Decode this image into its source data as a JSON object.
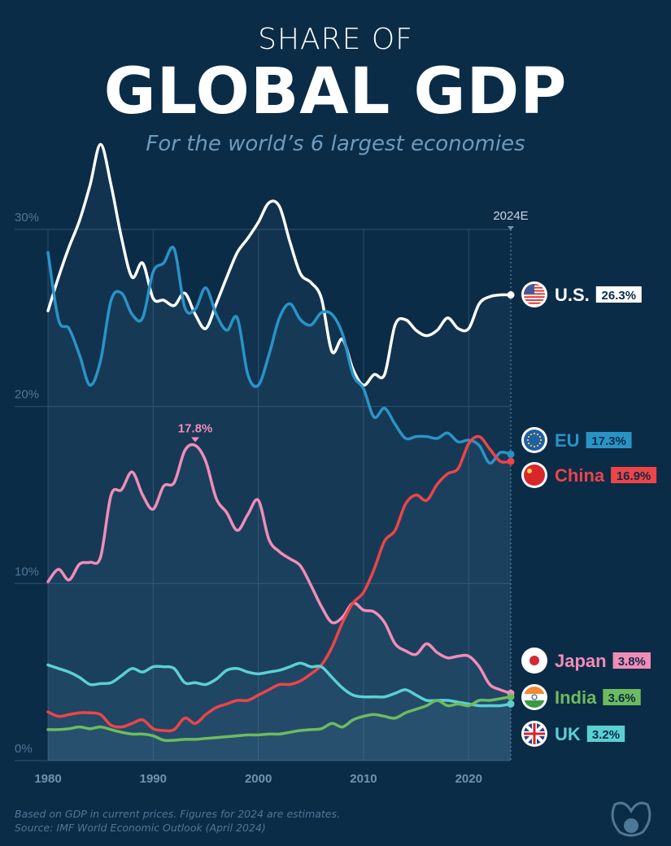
{
  "header": {
    "kicker": "SHARE OF",
    "title": "GLOBAL GDP",
    "subtitle": "For the world’s 6 largest economies"
  },
  "chart_data": {
    "type": "line",
    "ylabel": "",
    "xlabel": "",
    "ylim": [
      0,
      30
    ],
    "xlim": [
      1980,
      2024
    ],
    "y_ticks": [
      "0%",
      "10%",
      "20%",
      "30%"
    ],
    "x_ticks": [
      "1980",
      "1990",
      "2000",
      "2010",
      "2020"
    ],
    "x_marker_label": "2024E",
    "grid": true,
    "annotation": {
      "series": "Japan",
      "year": 1994,
      "label": "17.8%"
    },
    "x": [
      1980,
      1981,
      1982,
      1983,
      1984,
      1985,
      1986,
      1987,
      1988,
      1989,
      1990,
      1991,
      1992,
      1993,
      1994,
      1995,
      1996,
      1997,
      1998,
      1999,
      2000,
      2001,
      2002,
      2003,
      2004,
      2005,
      2006,
      2007,
      2008,
      2009,
      2010,
      2011,
      2012,
      2013,
      2014,
      2015,
      2016,
      2017,
      2018,
      2019,
      2020,
      2021,
      2022,
      2023,
      2024
    ],
    "series": [
      {
        "name": "U.S.",
        "end_label": "26.3%",
        "color": "#ffffff",
        "flag": "us-flag",
        "values": [
          25.4,
          27.3,
          29.0,
          30.5,
          32.5,
          34.8,
          32.5,
          29.5,
          27.3,
          28.1,
          26.1,
          26.0,
          25.7,
          26.4,
          25.2,
          24.4,
          25.8,
          27.3,
          28.7,
          29.5,
          30.4,
          31.5,
          31.3,
          29.3,
          27.5,
          27.0,
          26.1,
          23.1,
          23.8,
          22.1,
          21.2,
          21.8,
          21.8,
          24.6,
          24.9,
          24.3,
          24.0,
          24.3,
          25.0,
          24.4,
          24.4,
          25.8,
          26.2,
          26.3,
          26.3
        ]
      },
      {
        "name": "EU",
        "end_label": "17.3%",
        "color": "#2a93c6",
        "flag": "eu-flag",
        "values": [
          28.7,
          24.9,
          24.4,
          22.9,
          21.2,
          22.6,
          26.0,
          26.4,
          25.2,
          25.0,
          27.6,
          28.1,
          28.9,
          25.6,
          25.5,
          26.7,
          25.2,
          24.3,
          25.0,
          21.8,
          21.2,
          22.9,
          25.0,
          25.8,
          24.9,
          24.6,
          25.3,
          25.2,
          24.1,
          21.8,
          21.0,
          19.4,
          19.9,
          19.0,
          18.2,
          18.3,
          18.3,
          18.2,
          18.5,
          18.0,
          18.1,
          17.8,
          16.8,
          17.4,
          17.3
        ]
      },
      {
        "name": "China",
        "end_label": "16.9%",
        "color": "#ee4448",
        "flag": "china-flag",
        "values": [
          2.75,
          2.5,
          2.6,
          2.7,
          2.7,
          2.6,
          2.0,
          1.9,
          2.1,
          2.3,
          1.8,
          1.7,
          1.75,
          2.4,
          2.1,
          2.6,
          3.0,
          3.2,
          3.4,
          3.4,
          3.7,
          4.0,
          4.3,
          4.3,
          4.5,
          4.9,
          5.4,
          6.4,
          7.8,
          8.9,
          9.5,
          10.8,
          12.4,
          13.0,
          14.5,
          15.0,
          14.7,
          15.6,
          16.2,
          16.5,
          17.9,
          18.3,
          17.6,
          16.9,
          16.9
        ]
      },
      {
        "name": "Japan",
        "end_label": "3.8%",
        "color": "#f28cb8",
        "flag": "japan-flag",
        "values": [
          10.1,
          10.8,
          10.2,
          11.1,
          11.2,
          11.5,
          15.0,
          15.3,
          16.3,
          15.0,
          14.2,
          15.5,
          15.7,
          17.5,
          17.8,
          16.9,
          14.8,
          14.0,
          13.0,
          13.9,
          14.7,
          12.5,
          11.8,
          11.4,
          11.0,
          9.9,
          8.7,
          7.8,
          8.1,
          8.9,
          8.5,
          8.4,
          7.8,
          6.6,
          6.2,
          6.0,
          6.6,
          6.1,
          5.8,
          5.9,
          5.9,
          5.3,
          4.3,
          4.0,
          3.8
        ]
      },
      {
        "name": "India",
        "end_label": "3.6%",
        "color": "#6dbb5e",
        "flag": "india-flag",
        "values": [
          1.75,
          1.75,
          1.8,
          1.9,
          1.8,
          1.9,
          1.75,
          1.6,
          1.5,
          1.5,
          1.4,
          1.15,
          1.15,
          1.2,
          1.2,
          1.25,
          1.3,
          1.35,
          1.4,
          1.45,
          1.45,
          1.5,
          1.5,
          1.6,
          1.7,
          1.75,
          1.8,
          2.1,
          1.9,
          2.3,
          2.5,
          2.6,
          2.5,
          2.4,
          2.7,
          2.9,
          3.1,
          3.4,
          3.1,
          3.2,
          3.1,
          3.4,
          3.4,
          3.5,
          3.6
        ]
      },
      {
        "name": "UK",
        "end_label": "3.2%",
        "color": "#5bd0d3",
        "flag": "uk-flag",
        "values": [
          5.4,
          5.2,
          5.0,
          4.7,
          4.3,
          4.35,
          4.4,
          4.8,
          5.2,
          5.0,
          5.3,
          5.3,
          5.2,
          4.4,
          4.4,
          4.3,
          4.6,
          5.1,
          5.2,
          5.0,
          4.9,
          5.0,
          5.1,
          5.3,
          5.5,
          5.3,
          5.3,
          4.7,
          4.1,
          3.7,
          3.6,
          3.6,
          3.6,
          3.8,
          4.0,
          3.7,
          3.4,
          3.4,
          3.4,
          3.3,
          3.2,
          3.1,
          3.1,
          3.1,
          3.2
        ]
      }
    ]
  },
  "footer": {
    "note": "Based on GDP in current prices. Figures for 2024 are estimates.",
    "source": "Source: IMF World Economic Outlook (April 2024)"
  },
  "colors": {
    "background": "#0b2c47",
    "grid": "#2a4d69",
    "axis_text": "#6f93b0"
  },
  "logo": "visual-capitalist-logo"
}
